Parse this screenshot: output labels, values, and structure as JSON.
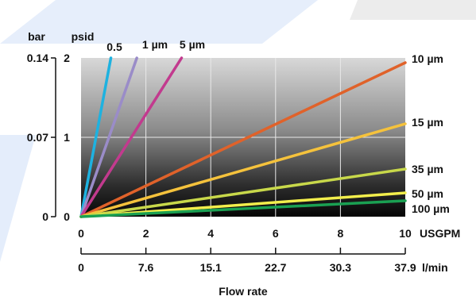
{
  "chart_data": {
    "type": "line",
    "title": "",
    "xlabel": "Flow rate",
    "x_units": [
      "USGPM",
      "l/min"
    ],
    "y_units": [
      "bar",
      "psid"
    ],
    "x_ticks_usgpm": [
      "0",
      "2",
      "4",
      "6",
      "8",
      "10"
    ],
    "x_ticks_lmin": [
      "0",
      "7.6",
      "15.1",
      "22.7",
      "30.3",
      "37.9"
    ],
    "y_ticks_bar": [
      "0",
      "0.07",
      "0.14"
    ],
    "y_ticks_psid": [
      "0",
      "1",
      "2"
    ],
    "xlim": [
      0,
      10
    ],
    "ylim": [
      0,
      2
    ],
    "grid": true,
    "series": [
      {
        "name": "0.5",
        "color": "#1eb2e0",
        "x": [
          0,
          0.92
        ],
        "y": [
          0,
          2.0
        ]
      },
      {
        "name": "1 µm",
        "color": "#9a8cc8",
        "x": [
          0,
          1.72
        ],
        "y": [
          0,
          2.0
        ]
      },
      {
        "name": "5 µm",
        "color": "#c23a8e",
        "x": [
          0,
          3.1
        ],
        "y": [
          0,
          2.0
        ]
      },
      {
        "name": "10 µm",
        "color": "#e0622a",
        "x": [
          0,
          10
        ],
        "y": [
          0,
          1.94
        ]
      },
      {
        "name": "15 µm",
        "color": "#f5c23c",
        "x": [
          0,
          10
        ],
        "y": [
          0,
          1.17
        ]
      },
      {
        "name": "35 µm",
        "color": "#c8d84a",
        "x": [
          0,
          10
        ],
        "y": [
          0,
          0.6
        ]
      },
      {
        "name": "50 µm",
        "color": "#f2ee4c",
        "x": [
          0,
          10
        ],
        "y": [
          0,
          0.3
        ]
      },
      {
        "name": "100 µm",
        "color": "#1aa052",
        "x": [
          0,
          10
        ],
        "y": [
          0,
          0.2
        ]
      }
    ]
  }
}
